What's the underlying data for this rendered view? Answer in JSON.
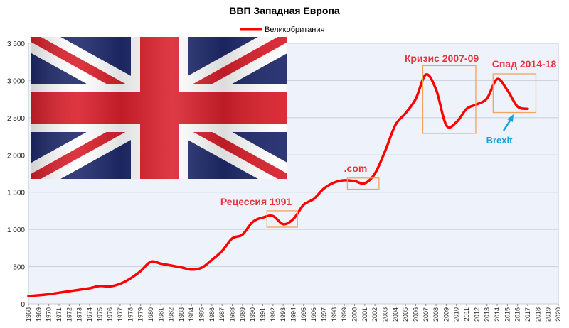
{
  "chart_data": {
    "type": "line",
    "title": "ВВП Западная Европа",
    "legend": {
      "position": "top",
      "label": "Великобритания"
    },
    "grid": true,
    "ylim": [
      0,
      3500
    ],
    "yticks": [
      0,
      500,
      1000,
      1500,
      2000,
      2500,
      3000,
      3500
    ],
    "ytick_labels": [
      "0",
      "500",
      "1 000",
      "1 500",
      "2 000",
      "2 500",
      "3 000",
      "3 500"
    ],
    "xlim": [
      1968,
      2020
    ],
    "x": [
      1968,
      1969,
      1970,
      1971,
      1972,
      1973,
      1974,
      1975,
      1976,
      1977,
      1978,
      1979,
      1980,
      1981,
      1982,
      1983,
      1984,
      1985,
      1986,
      1987,
      1988,
      1989,
      1990,
      1991,
      1992,
      1993,
      1994,
      1995,
      1996,
      1997,
      1998,
      1999,
      2000,
      2001,
      2002,
      2003,
      2004,
      2005,
      2006,
      2007,
      2008,
      2009,
      2010,
      2011,
      2012,
      2013,
      2014,
      2015,
      2016,
      2017
    ],
    "series": [
      {
        "name": "Великобритания",
        "color": "#ff0000",
        "values": [
          105,
          115,
          130,
          150,
          170,
          190,
          210,
          240,
          235,
          270,
          340,
          440,
          565,
          540,
          515,
          490,
          460,
          485,
          590,
          710,
          880,
          930,
          1100,
          1160,
          1180,
          1070,
          1140,
          1330,
          1410,
          1550,
          1630,
          1660,
          1650,
          1620,
          1750,
          2050,
          2400,
          2560,
          2750,
          3080,
          2880,
          2400,
          2440,
          2620,
          2680,
          2760,
          3020,
          2870,
          2650,
          2620
        ]
      }
    ],
    "annotations": [
      {
        "label": "Рецессия 1991",
        "color": "#e8323c",
        "box": {
          "x0": 1991.4,
          "x1": 1994.4,
          "y0": 1030,
          "y1": 1250
        }
      },
      {
        "label": ".com",
        "color": "#e8323c",
        "box": {
          "x0": 1999.3,
          "x1": 2002.4,
          "y0": 1540,
          "y1": 1690
        }
      },
      {
        "label": "Кризис 2007-09",
        "color": "#e8323c",
        "box": {
          "x0": 2006.7,
          "x1": 2011.9,
          "y0": 2290,
          "y1": 3200
        }
      },
      {
        "label": "Спад 2014-18",
        "color": "#e8323c",
        "box": {
          "x0": 2013.6,
          "x1": 2017.8,
          "y0": 2570,
          "y1": 3090
        }
      },
      {
        "label": "Brexit",
        "color": "#17a2d8",
        "arrow_to": {
          "x": 2015.8,
          "y": 2570
        }
      }
    ],
    "inset_image": "union-jack-flag"
  }
}
